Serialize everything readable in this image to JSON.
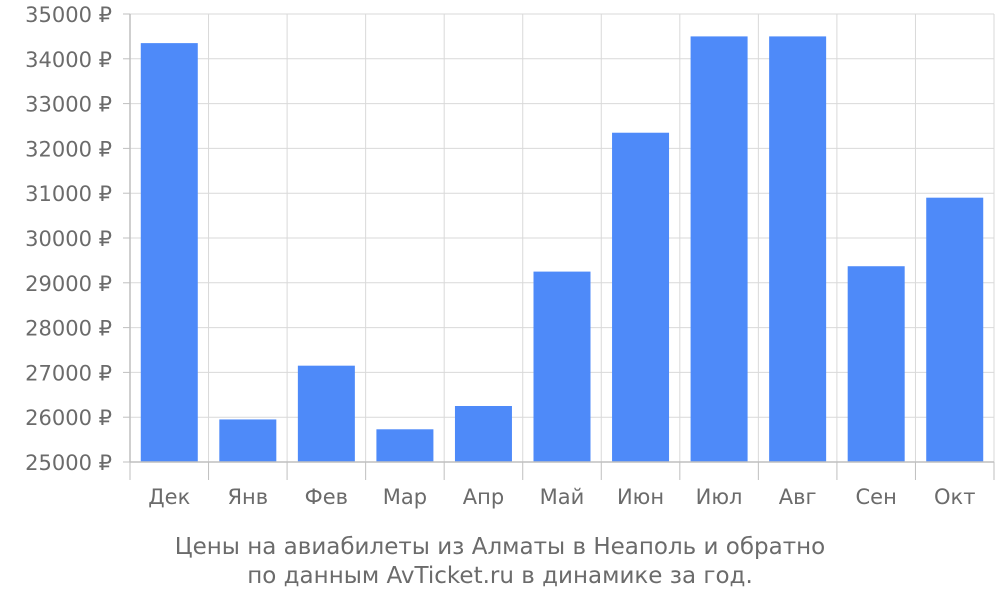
{
  "chart_data": {
    "type": "bar",
    "categories": [
      "Дек",
      "Янв",
      "Фев",
      "Мар",
      "Апр",
      "Май",
      "Июн",
      "Июл",
      "Авг",
      "Сен",
      "Окт"
    ],
    "values": [
      34350,
      25950,
      27150,
      25730,
      26250,
      29250,
      32350,
      34500,
      34500,
      29370,
      30900
    ],
    "ylim": [
      25000,
      35000
    ],
    "yticks": [
      25000,
      26000,
      27000,
      28000,
      29000,
      30000,
      31000,
      32000,
      33000,
      34000,
      35000
    ],
    "ytick_suffix": " ₽",
    "grid": true,
    "bar_color": "#4e8af9",
    "grid_color": "#d9d9d9",
    "axis_color": "#bfbfbf",
    "text_color": "#6b6b6b"
  },
  "caption": {
    "line1": "Цены на авиабилеты из Алматы в Неаполь и обратно",
    "line2": "по данным AvTicket.ru в динамике за год."
  }
}
